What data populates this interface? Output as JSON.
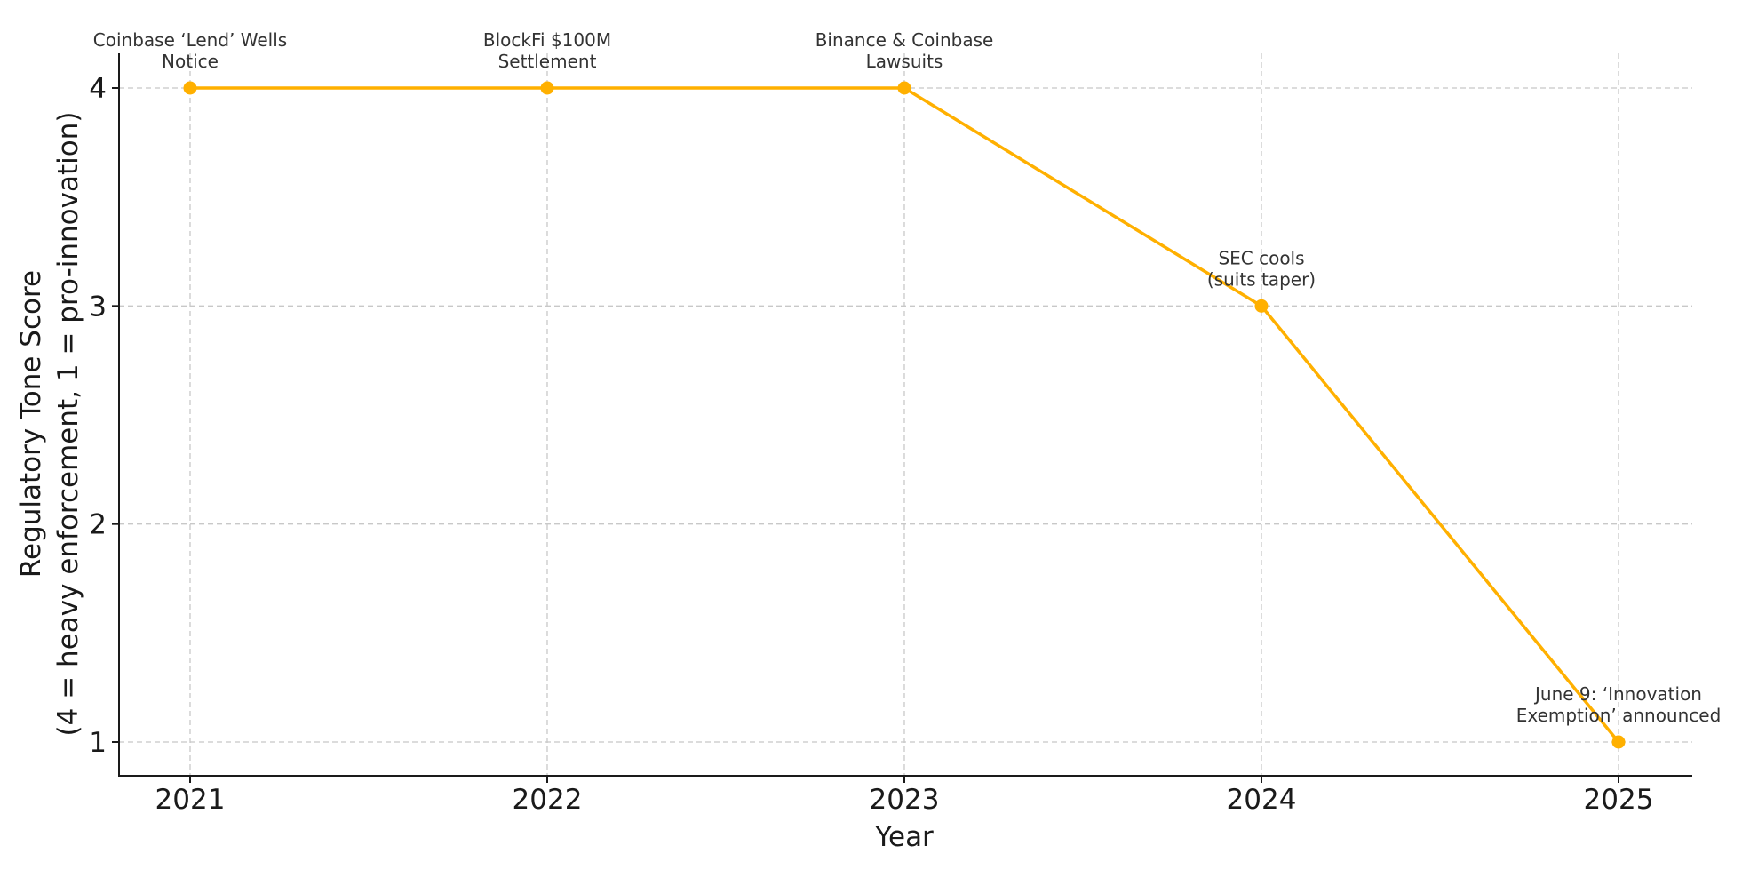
{
  "chart_data": {
    "type": "line",
    "title": "",
    "xlabel": "Year",
    "ylabel_lines": [
      "Regulatory Tone Score",
      "(4 = heavy enforcement, 1 = pro-innovation)"
    ],
    "x_ticks": [
      "2021",
      "2022",
      "2023",
      "2024",
      "2025"
    ],
    "y_ticks": [
      "1",
      "2",
      "3",
      "4"
    ],
    "xlim": [
      2020.8,
      2025.2
    ],
    "ylim": [
      0.85,
      4.15
    ],
    "grid": true,
    "line_color": "#FFB000",
    "series": [
      {
        "x": [
          2021,
          2022,
          2023,
          2024,
          2025
        ],
        "values": [
          4,
          4,
          4,
          3,
          1
        ]
      }
    ],
    "annotations": [
      {
        "x": 2021,
        "y": 4,
        "lines": [
          "Coinbase ‘Lend’ Wells",
          "Notice"
        ]
      },
      {
        "x": 2022,
        "y": 4,
        "lines": [
          "BlockFi $100M",
          "Settlement"
        ]
      },
      {
        "x": 2023,
        "y": 4,
        "lines": [
          "Binance & Coinbase",
          "Lawsuits"
        ]
      },
      {
        "x": 2024,
        "y": 3,
        "lines": [
          "SEC cools",
          "(suits taper)"
        ]
      },
      {
        "x": 2025,
        "y": 1,
        "lines": [
          "June 9: ‘Innovation",
          "Exemption’ announced"
        ]
      }
    ]
  }
}
